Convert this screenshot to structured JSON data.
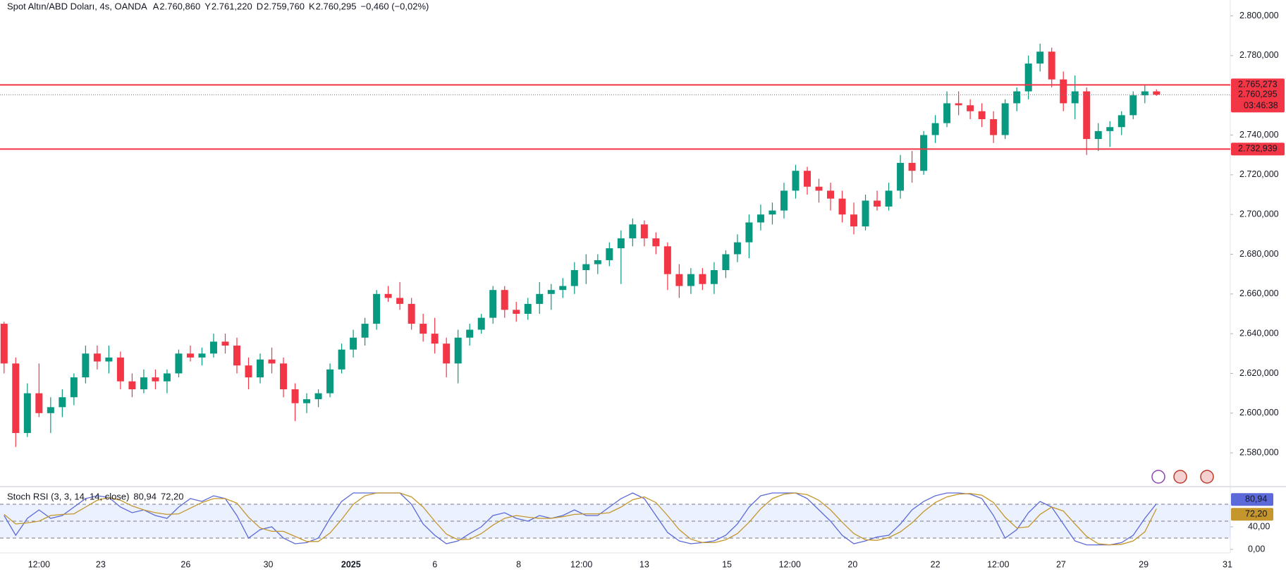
{
  "header": {
    "symbol": "Spot Altın/ABD Doları, 4s, OANDA",
    "ohlc": [
      {
        "key": "A",
        "value": "2.760,860"
      },
      {
        "key": "Y",
        "value": "2.761,220"
      },
      {
        "key": "D",
        "value": "2.759,760"
      },
      {
        "key": "K",
        "value": "2.760,295"
      }
    ],
    "change": "−0,460 (−0,02%)"
  },
  "chart_data": [
    {
      "type": "candlestick",
      "up_color": "#089981",
      "down_color": "#f23645",
      "ylim": [
        2563,
        2808
      ],
      "yticks": [
        {
          "value": 2580,
          "label": "2.580,000"
        },
        {
          "value": 2600,
          "label": "2.600,000"
        },
        {
          "value": 2620,
          "label": "2.620,000"
        },
        {
          "value": 2640,
          "label": "2.640,000"
        },
        {
          "value": 2660,
          "label": "2.660,000"
        },
        {
          "value": 2680,
          "label": "2.680,000"
        },
        {
          "value": 2700,
          "label": "2.700,000"
        },
        {
          "value": 2720,
          "label": "2.720,000"
        },
        {
          "value": 2740,
          "label": "2.740,000"
        },
        {
          "value": 2760,
          "label": "2.760,000"
        },
        {
          "value": 2780,
          "label": "2.780,000"
        },
        {
          "value": 2800,
          "label": "2.800,000"
        }
      ],
      "hlines": [
        {
          "value": 2765.273,
          "label": "2.765,273"
        },
        {
          "value": 2732.939,
          "label": "2.732,939"
        }
      ],
      "last_price": {
        "value": 2760.295,
        "label": "2.760,295",
        "countdown": "03:46:38"
      },
      "x_labels": [
        {
          "index": 3.0,
          "label": "12:00"
        },
        {
          "index": 8.3,
          "label": "23"
        },
        {
          "index": 15.6,
          "label": "26"
        },
        {
          "index": 22.7,
          "label": "30"
        },
        {
          "index": 29.8,
          "label": "2025"
        },
        {
          "index": 37.0,
          "label": "6"
        },
        {
          "index": 44.2,
          "label": "8"
        },
        {
          "index": 49.6,
          "label": "12:00"
        },
        {
          "index": 55.0,
          "label": "13"
        },
        {
          "index": 62.1,
          "label": "15"
        },
        {
          "index": 67.5,
          "label": "12:00"
        },
        {
          "index": 72.9,
          "label": "20"
        },
        {
          "index": 80.0,
          "label": "22"
        },
        {
          "index": 85.4,
          "label": "12:00"
        },
        {
          "index": 90.8,
          "label": "27"
        },
        {
          "index": 97.9,
          "label": "29"
        },
        {
          "index": 105.1,
          "label": "31"
        }
      ],
      "ohlc": [
        [
          2645,
          2646,
          2620,
          2625
        ],
        [
          2625,
          2628,
          2583,
          2590
        ],
        [
          2590,
          2615,
          2588,
          2610
        ],
        [
          2610,
          2625,
          2598,
          2600
        ],
        [
          2600,
          2608,
          2590,
          2603
        ],
        [
          2603,
          2612,
          2598,
          2608
        ],
        [
          2608,
          2620,
          2604,
          2618
        ],
        [
          2618,
          2634,
          2615,
          2630
        ],
        [
          2630,
          2634,
          2622,
          2626
        ],
        [
          2626,
          2634,
          2620,
          2628
        ],
        [
          2628,
          2631,
          2612,
          2616
        ],
        [
          2616,
          2620,
          2608,
          2612
        ],
        [
          2612,
          2622,
          2610,
          2618
        ],
        [
          2618,
          2622,
          2612,
          2616
        ],
        [
          2616,
          2622,
          2610,
          2620
        ],
        [
          2620,
          2632,
          2618,
          2630
        ],
        [
          2630,
          2634,
          2626,
          2628
        ],
        [
          2628,
          2633,
          2624,
          2630
        ],
        [
          2630,
          2640,
          2628,
          2636
        ],
        [
          2636,
          2640,
          2630,
          2634
        ],
        [
          2634,
          2638,
          2620,
          2624
        ],
        [
          2624,
          2628,
          2612,
          2618
        ],
        [
          2618,
          2630,
          2615,
          2627
        ],
        [
          2627,
          2633,
          2620,
          2625
        ],
        [
          2625,
          2628,
          2608,
          2612
        ],
        [
          2612,
          2615,
          2596,
          2605
        ],
        [
          2605,
          2610,
          2600,
          2607
        ],
        [
          2607,
          2612,
          2603,
          2610
        ],
        [
          2610,
          2625,
          2608,
          2622
        ],
        [
          2622,
          2635,
          2620,
          2632
        ],
        [
          2632,
          2642,
          2628,
          2638
        ],
        [
          2638,
          2648,
          2634,
          2645
        ],
        [
          2645,
          2662,
          2642,
          2660
        ],
        [
          2660,
          2664,
          2656,
          2658
        ],
        [
          2658,
          2666,
          2652,
          2655
        ],
        [
          2655,
          2658,
          2642,
          2645
        ],
        [
          2645,
          2650,
          2636,
          2640
        ],
        [
          2640,
          2648,
          2630,
          2635
        ],
        [
          2635,
          2638,
          2618,
          2625
        ],
        [
          2625,
          2642,
          2615,
          2638
        ],
        [
          2638,
          2645,
          2634,
          2642
        ],
        [
          2642,
          2650,
          2640,
          2648
        ],
        [
          2648,
          2664,
          2645,
          2662
        ],
        [
          2662,
          2664,
          2648,
          2652
        ],
        [
          2652,
          2656,
          2646,
          2650
        ],
        [
          2650,
          2658,
          2647,
          2655
        ],
        [
          2655,
          2666,
          2650,
          2660
        ],
        [
          2660,
          2665,
          2652,
          2662
        ],
        [
          2662,
          2668,
          2658,
          2664
        ],
        [
          2664,
          2676,
          2660,
          2672
        ],
        [
          2672,
          2680,
          2665,
          2675
        ],
        [
          2675,
          2680,
          2670,
          2677
        ],
        [
          2677,
          2686,
          2674,
          2683
        ],
        [
          2683,
          2692,
          2665,
          2688
        ],
        [
          2688,
          2698,
          2684,
          2695
        ],
        [
          2695,
          2697,
          2684,
          2688
        ],
        [
          2688,
          2691,
          2680,
          2684
        ],
        [
          2684,
          2686,
          2662,
          2670
        ],
        [
          2670,
          2675,
          2658,
          2664
        ],
        [
          2664,
          2673,
          2660,
          2670
        ],
        [
          2670,
          2673,
          2662,
          2665
        ],
        [
          2665,
          2676,
          2660,
          2672
        ],
        [
          2672,
          2682,
          2668,
          2680
        ],
        [
          2680,
          2690,
          2676,
          2686
        ],
        [
          2686,
          2700,
          2678,
          2696
        ],
        [
          2696,
          2705,
          2692,
          2700
        ],
        [
          2700,
          2706,
          2695,
          2702
        ],
        [
          2702,
          2716,
          2698,
          2712
        ],
        [
          2712,
          2725,
          2708,
          2722
        ],
        [
          2722,
          2724,
          2710,
          2714
        ],
        [
          2714,
          2718,
          2706,
          2712
        ],
        [
          2712,
          2716,
          2702,
          2708
        ],
        [
          2708,
          2712,
          2696,
          2700
        ],
        [
          2700,
          2706,
          2690,
          2694
        ],
        [
          2694,
          2710,
          2692,
          2707
        ],
        [
          2707,
          2712,
          2702,
          2704
        ],
        [
          2704,
          2716,
          2702,
          2712
        ],
        [
          2712,
          2730,
          2708,
          2726
        ],
        [
          2726,
          2732,
          2716,
          2722
        ],
        [
          2722,
          2742,
          2720,
          2740
        ],
        [
          2740,
          2750,
          2736,
          2746
        ],
        [
          2746,
          2762,
          2744,
          2756
        ],
        [
          2756,
          2762,
          2750,
          2755
        ],
        [
          2755,
          2758,
          2748,
          2752
        ],
        [
          2752,
          2756,
          2744,
          2748
        ],
        [
          2748,
          2752,
          2736,
          2740
        ],
        [
          2740,
          2758,
          2738,
          2756
        ],
        [
          2756,
          2764,
          2752,
          2762
        ],
        [
          2762,
          2780,
          2758,
          2776
        ],
        [
          2776,
          2786,
          2772,
          2782
        ],
        [
          2782,
          2784,
          2764,
          2768
        ],
        [
          2768,
          2772,
          2752,
          2756
        ],
        [
          2756,
          2770,
          2748,
          2762
        ],
        [
          2762,
          2764,
          2730,
          2738
        ],
        [
          2738,
          2746,
          2732,
          2742
        ],
        [
          2742,
          2747,
          2734,
          2744
        ],
        [
          2744,
          2752,
          2740,
          2750
        ],
        [
          2750,
          2762,
          2748,
          2760
        ],
        [
          2760,
          2765,
          2756,
          2762
        ],
        [
          2762,
          2763,
          2759.76,
          2760.295
        ]
      ]
    },
    {
      "type": "line",
      "title": "Stoch RSI (3, 3, 14, 14, close)",
      "ylim": [
        0,
        100
      ],
      "yticks": [
        {
          "value": 40,
          "label": "40,00"
        },
        {
          "value": 0,
          "label": "0,00"
        }
      ],
      "levels": [
        80,
        50,
        20
      ],
      "series": [
        {
          "color": "#5b6ad8",
          "value_label": "80,94",
          "values": [
            60,
            25,
            55,
            70,
            55,
            60,
            75,
            90,
            95,
            92,
            75,
            65,
            70,
            60,
            55,
            75,
            90,
            85,
            95,
            90,
            60,
            20,
            35,
            40,
            20,
            10,
            12,
            20,
            55,
            85,
            100,
            100,
            100,
            100,
            100,
            80,
            45,
            25,
            10,
            15,
            28,
            40,
            60,
            65,
            55,
            50,
            60,
            55,
            60,
            70,
            60,
            60,
            75,
            90,
            100,
            90,
            60,
            30,
            15,
            10,
            12,
            15,
            25,
            45,
            75,
            95,
            100,
            100,
            100,
            90,
            70,
            50,
            25,
            10,
            15,
            22,
            25,
            45,
            70,
            85,
            95,
            100,
            100,
            98,
            90,
            60,
            20,
            35,
            65,
            85,
            75,
            45,
            15,
            8,
            8,
            8,
            12,
            25,
            55,
            80.94
          ]
        },
        {
          "color": "#c4962c",
          "value_label": "72,20",
          "values": [
            62,
            45,
            47,
            50,
            60,
            62,
            63,
            75,
            87,
            92,
            87,
            77,
            70,
            65,
            62,
            63,
            73,
            83,
            90,
            90,
            82,
            57,
            38,
            32,
            32,
            23,
            14,
            14,
            29,
            53,
            80,
            95,
            100,
            100,
            100,
            93,
            75,
            50,
            27,
            17,
            18,
            28,
            43,
            55,
            60,
            57,
            55,
            55,
            58,
            62,
            63,
            63,
            65,
            75,
            88,
            93,
            83,
            60,
            35,
            18,
            12,
            12,
            17,
            28,
            48,
            72,
            90,
            98,
            100,
            97,
            87,
            70,
            48,
            28,
            17,
            16,
            21,
            31,
            47,
            67,
            83,
            93,
            98,
            99,
            96,
            83,
            57,
            38,
            40,
            62,
            75,
            68,
            45,
            23,
            10,
            8,
            9,
            15,
            31,
            72.2
          ]
        }
      ]
    }
  ]
}
